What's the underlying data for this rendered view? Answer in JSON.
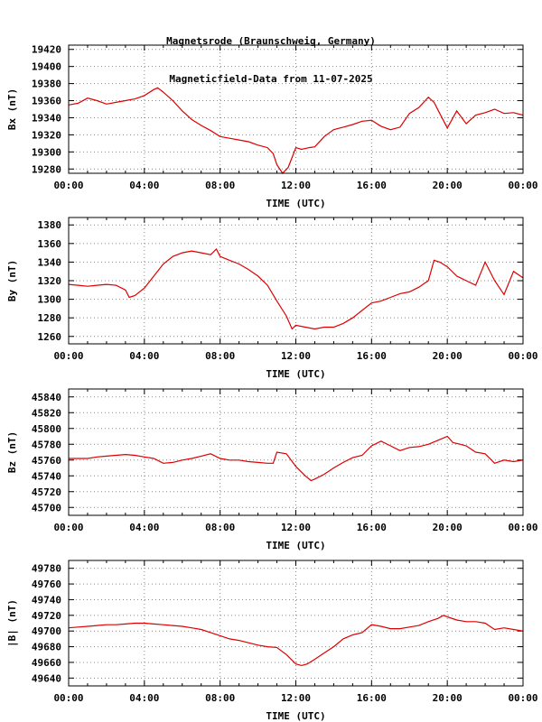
{
  "title": {
    "line1": "Magnetsrode (Braunschweig, Germany)",
    "line2": "Magneticfield-Data from 11-07-2025"
  },
  "colors": {
    "series": "#dd0000",
    "grid": "#888888",
    "frame": "#000000"
  },
  "chart_data": [
    {
      "type": "line",
      "ylabel": "Bx (nT)",
      "xlabel": "TIME (UTC)",
      "xticks": [
        "00:00",
        "04:00",
        "08:00",
        "12:00",
        "16:00",
        "20:00",
        "00:00"
      ],
      "yticks": [
        19280,
        19300,
        19320,
        19340,
        19360,
        19380,
        19400,
        19420
      ],
      "xlim": [
        0,
        24
      ],
      "ylim": [
        19275,
        19425
      ],
      "grid": true,
      "series": [
        {
          "x": [
            0,
            0.5,
            1,
            1.5,
            2,
            2.5,
            3,
            3.5,
            4,
            4.5,
            4.7,
            5,
            5.5,
            6,
            6.5,
            7,
            7.5,
            8,
            8.5,
            9,
            9.5,
            10,
            10.5,
            10.8,
            11,
            11.3,
            11.6,
            12,
            12.3,
            12.7,
            13,
            13.5,
            14,
            14.5,
            15,
            15.5,
            16,
            16.5,
            17,
            17.5,
            18,
            18.5,
            19,
            19.3,
            19.6,
            20,
            20.5,
            21,
            21.5,
            22,
            22.5,
            23,
            23.5,
            24
          ],
          "y": [
            19355,
            19357,
            19363,
            19360,
            19356,
            19358,
            19360,
            19362,
            19366,
            19373,
            19375,
            19370,
            19360,
            19348,
            19338,
            19331,
            19325,
            19318,
            19316,
            19314,
            19312,
            19308,
            19305,
            19298,
            19285,
            19275,
            19282,
            19305,
            19303,
            19305,
            19306,
            19318,
            19326,
            19329,
            19332,
            19336,
            19337,
            19330,
            19326,
            19329,
            19345,
            19352,
            19364,
            19358,
            19345,
            19328,
            19348,
            19333,
            19343,
            19346,
            19350,
            19345,
            19346,
            19343
          ]
        }
      ]
    },
    {
      "type": "line",
      "ylabel": "By (nT)",
      "xlabel": "TIME (UTC)",
      "xticks": [
        "00:00",
        "04:00",
        "08:00",
        "12:00",
        "16:00",
        "20:00",
        "00:00"
      ],
      "yticks": [
        1260,
        1280,
        1300,
        1320,
        1340,
        1360,
        1380
      ],
      "xlim": [
        0,
        24
      ],
      "ylim": [
        1252,
        1388
      ],
      "grid": true,
      "series": [
        {
          "x": [
            0,
            0.5,
            1,
            1.5,
            2,
            2.5,
            3,
            3.2,
            3.5,
            4,
            4.5,
            5,
            5.5,
            6,
            6.5,
            7,
            7.5,
            7.8,
            8,
            8.5,
            9,
            9.5,
            10,
            10.5,
            11,
            11.5,
            11.8,
            12,
            12.5,
            13,
            13.5,
            14,
            14.5,
            15,
            15.5,
            16,
            16.5,
            17,
            17.5,
            18,
            18.5,
            19,
            19.3,
            19.6,
            20,
            20.5,
            21,
            21.5,
            22,
            22.5,
            23,
            23.5,
            24
          ],
          "y": [
            1316,
            1315,
            1314,
            1315,
            1316,
            1315,
            1310,
            1302,
            1304,
            1312,
            1325,
            1338,
            1346,
            1350,
            1352,
            1350,
            1348,
            1354,
            1346,
            1342,
            1338,
            1332,
            1325,
            1315,
            1298,
            1282,
            1268,
            1272,
            1270,
            1268,
            1270,
            1270,
            1274,
            1280,
            1288,
            1296,
            1298,
            1302,
            1306,
            1308,
            1313,
            1320,
            1342,
            1340,
            1335,
            1325,
            1320,
            1315,
            1340,
            1320,
            1305,
            1330,
            1323
          ]
        }
      ]
    },
    {
      "type": "line",
      "ylabel": "Bz (nT)",
      "xlabel": "TIME (UTC)",
      "xticks": [
        "00:00",
        "04:00",
        "08:00",
        "12:00",
        "16:00",
        "20:00",
        "00:00"
      ],
      "yticks": [
        45700,
        45720,
        45740,
        45760,
        45780,
        45800,
        45820,
        45840
      ],
      "xlim": [
        0,
        24
      ],
      "ylim": [
        45690,
        45850
      ],
      "grid": true,
      "series": [
        {
          "x": [
            0,
            0.5,
            1,
            1.5,
            2,
            2.5,
            3,
            3.5,
            4,
            4.5,
            5,
            5.5,
            6,
            6.5,
            7,
            7.5,
            8,
            8.5,
            9,
            9.5,
            10,
            10.5,
            10.8,
            11,
            11.5,
            12,
            12.5,
            12.8,
            13,
            13.5,
            14,
            14.5,
            15,
            15.5,
            16,
            16.5,
            17,
            17.5,
            18,
            18.5,
            19,
            19.5,
            20,
            20.3,
            20.7,
            21,
            21.5,
            22,
            22.5,
            23,
            23.5,
            24
          ],
          "y": [
            45762,
            45762,
            45762,
            45764,
            45765,
            45766,
            45767,
            45766,
            45764,
            45762,
            45756,
            45757,
            45760,
            45762,
            45765,
            45768,
            45762,
            45760,
            45760,
            45758,
            45757,
            45756,
            45756,
            45770,
            45768,
            45752,
            45740,
            45734,
            45736,
            45742,
            45750,
            45757,
            45763,
            45766,
            45778,
            45784,
            45778,
            45772,
            45776,
            45777,
            45780,
            45785,
            45790,
            45782,
            45780,
            45778,
            45770,
            45768,
            45756,
            45760,
            45758,
            45760
          ]
        }
      ]
    },
    {
      "type": "line",
      "ylabel": "|B| (nT)",
      "xlabel": "TIME (UTC)",
      "xticks": [
        "00:00",
        "04:00",
        "08:00",
        "12:00",
        "16:00",
        "20:00",
        "00:00"
      ],
      "yticks": [
        49640,
        49660,
        49680,
        49700,
        49720,
        49740,
        49760,
        49780
      ],
      "xlim": [
        0,
        24
      ],
      "ylim": [
        49630,
        49790
      ],
      "grid": true,
      "series": [
        {
          "x": [
            0,
            0.5,
            1,
            1.5,
            2,
            2.5,
            3,
            3.5,
            4,
            4.5,
            5,
            5.5,
            6,
            6.5,
            7,
            7.5,
            8,
            8.5,
            9,
            9.5,
            10,
            10.5,
            11,
            11.5,
            12,
            12.3,
            12.6,
            13,
            13.5,
            14,
            14.5,
            15,
            15.5,
            16,
            16.5,
            17,
            17.5,
            18,
            18.5,
            19,
            19.5,
            19.8,
            20,
            20.5,
            21,
            21.5,
            22,
            22.5,
            23,
            23.5,
            24
          ],
          "y": [
            49704,
            49705,
            49706,
            49707,
            49708,
            49708,
            49709,
            49710,
            49710,
            49709,
            49708,
            49707,
            49706,
            49704,
            49702,
            49698,
            49694,
            49690,
            49688,
            49685,
            49682,
            49680,
            49679,
            49670,
            49658,
            49656,
            49658,
            49664,
            49672,
            49680,
            49690,
            49695,
            49698,
            49708,
            49706,
            49703,
            49703,
            49705,
            49707,
            49712,
            49716,
            49720,
            49718,
            49714,
            49712,
            49712,
            49710,
            49702,
            49704,
            49702,
            49700
          ]
        }
      ]
    }
  ]
}
